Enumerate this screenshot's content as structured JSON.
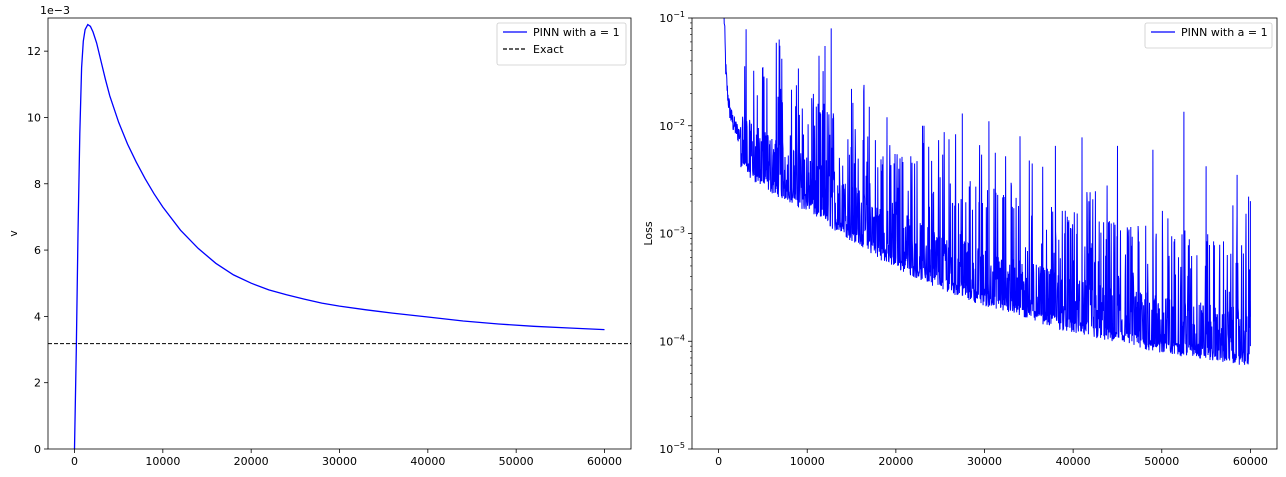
{
  "chart_data": [
    {
      "type": "line",
      "xlabel": "",
      "ylabel": "v",
      "y_offset_text": "1e−3",
      "xlim": [
        -3000,
        63000
      ],
      "ylim": [
        0,
        0.013
      ],
      "xticks": [
        0,
        10000,
        20000,
        30000,
        40000,
        50000,
        60000
      ],
      "yticks": [
        0,
        0.002,
        0.004,
        0.006,
        0.008,
        0.01,
        0.012
      ],
      "ytick_labels": [
        "0",
        "2",
        "4",
        "6",
        "8",
        "10",
        "12"
      ],
      "legend_position": "upper-right",
      "series": [
        {
          "name": "PINN with a = 1",
          "color": "#0000ff",
          "style": "solid",
          "x": [
            0,
            200,
            400,
            600,
            800,
            1000,
            1200,
            1500,
            1800,
            2100,
            2500,
            3000,
            3500,
            4000,
            5000,
            6000,
            7000,
            8000,
            9000,
            10000,
            12000,
            14000,
            16000,
            18000,
            20000,
            22000,
            24000,
            26000,
            28000,
            30000,
            33000,
            36000,
            40000,
            44000,
            48000,
            52000,
            56000,
            60000
          ],
          "y": [
            0.0,
            0.003,
            0.0065,
            0.0095,
            0.0115,
            0.0123,
            0.01265,
            0.0128,
            0.01275,
            0.01258,
            0.01225,
            0.0117,
            0.01115,
            0.01065,
            0.00985,
            0.0092,
            0.00865,
            0.00815,
            0.0077,
            0.0073,
            0.0066,
            0.00605,
            0.0056,
            0.00525,
            0.005,
            0.0048,
            0.00465,
            0.00452,
            0.0044,
            0.00431,
            0.0042,
            0.0041,
            0.00398,
            0.00386,
            0.00377,
            0.0037,
            0.00365,
            0.0036
          ]
        },
        {
          "name": "Exact",
          "color": "#000000",
          "style": "dashed",
          "hline": 0.00318
        }
      ]
    },
    {
      "type": "line",
      "xlabel": "",
      "ylabel": "Loss",
      "yscale": "log",
      "xlim": [
        -3000,
        63000
      ],
      "ylim": [
        1e-05,
        0.1
      ],
      "xticks": [
        0,
        10000,
        20000,
        30000,
        40000,
        50000,
        60000
      ],
      "yticks": [
        1e-05,
        0.0001,
        0.001,
        0.01,
        0.1
      ],
      "ytick_labels": [
        {
          "base": "10",
          "exp": "−5"
        },
        {
          "base": "10",
          "exp": "−4"
        },
        {
          "base": "10",
          "exp": "−3"
        },
        {
          "base": "10",
          "exp": "−2"
        },
        {
          "base": "10",
          "exp": "−1"
        }
      ],
      "legend_position": "upper-right",
      "series": [
        {
          "name": "PINN with a = 1",
          "color": "#0000ff",
          "style": "solid",
          "x": [
            600,
            700,
            800,
            1000,
            1200,
            1500,
            2000,
            3000,
            4000,
            5000,
            6000,
            8000,
            10000,
            12000,
            14000,
            16000,
            18000,
            20000,
            25000,
            30000,
            35000,
            40000,
            45000,
            50000,
            55000,
            58000,
            60000
          ],
          "y": [
            0.1,
            0.06,
            0.03,
            0.018,
            0.013,
            0.01,
            0.008,
            0.0062,
            0.0052,
            0.0045,
            0.004,
            0.0033,
            0.0027,
            0.0021,
            0.0016,
            0.0013,
            0.001,
            0.0008,
            0.00052,
            0.00036,
            0.00027,
            0.0002,
            0.00016,
            0.00013,
            0.000115,
            0.000105,
            0.0001
          ],
          "noise_floor_ratio": 0.65,
          "spikes": [
            {
              "x": 5000,
              "y": 0.035
            },
            {
              "x": 7000,
              "y": 0.022
            },
            {
              "x": 9000,
              "y": 0.034
            },
            {
              "x": 10500,
              "y": 0.018
            },
            {
              "x": 12000,
              "y": 0.055
            },
            {
              "x": 12700,
              "y": 0.08
            },
            {
              "x": 15000,
              "y": 0.022
            },
            {
              "x": 17000,
              "y": 0.015
            },
            {
              "x": 19000,
              "y": 0.012
            },
            {
              "x": 23000,
              "y": 0.01
            },
            {
              "x": 26000,
              "y": 0.0075
            },
            {
              "x": 27500,
              "y": 0.013
            },
            {
              "x": 30500,
              "y": 0.011
            },
            {
              "x": 34000,
              "y": 0.008
            },
            {
              "x": 38000,
              "y": 0.0065
            },
            {
              "x": 41000,
              "y": 0.0078
            },
            {
              "x": 45000,
              "y": 0.0065
            },
            {
              "x": 49000,
              "y": 0.006
            },
            {
              "x": 52500,
              "y": 0.0135
            },
            {
              "x": 55000,
              "y": 0.0042
            },
            {
              "x": 58500,
              "y": 0.0035
            },
            {
              "x": 59800,
              "y": 0.0022
            }
          ]
        }
      ]
    }
  ]
}
